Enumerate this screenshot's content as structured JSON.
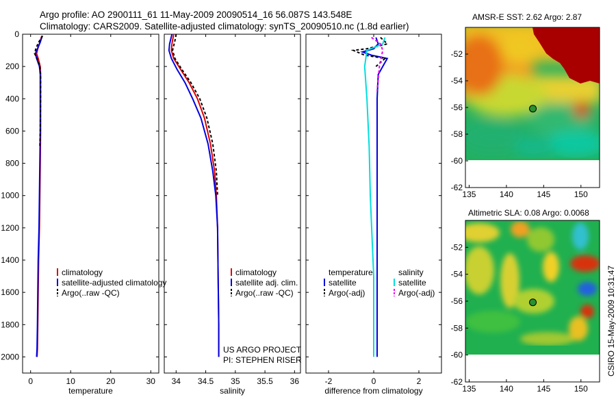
{
  "header": {
    "line1": "Argo profile: AO 2900111_61 11-May-2009 20090514_16 56.087S 143.548E",
    "line2": "Climatology: CARS2009. Satellite-adjusted climatology: synTS_20090510.nc (1.8d earlier)"
  },
  "chart_data": [
    {
      "type": "line",
      "id": "temperature",
      "xlabel": "temperature",
      "ylabel": "",
      "xlim": [
        -2,
        32
      ],
      "ylim": [
        2100,
        0
      ],
      "xticks": [
        0,
        10,
        20,
        30
      ],
      "yticks": [
        0,
        200,
        400,
        600,
        800,
        1000,
        1200,
        1400,
        1600,
        1800,
        2000
      ],
      "legend": [
        "climatology",
        "satellite-adjusted climatology",
        "Argo(..raw -QC)"
      ],
      "series": [
        {
          "name": "climatology",
          "color": "#dd0000",
          "x": [
            2.8,
            2.3,
            1.8,
            1.5,
            1.9,
            2.4,
            2.5,
            2.5,
            2.5,
            2.4,
            2.3,
            2.2,
            2.0,
            1.9,
            1.8,
            1.7,
            1.6
          ],
          "y": [
            10,
            50,
            90,
            120,
            150,
            200,
            250,
            400,
            600,
            800,
            1000,
            1200,
            1400,
            1600,
            1800,
            1950,
            2000
          ]
        },
        {
          "name": "satellite-adjusted climatology",
          "color": "#0000dd",
          "x": [
            2.9,
            2.4,
            1.7,
            1.2,
            1.5,
            2.2,
            2.4,
            2.4,
            2.4,
            2.3,
            2.2,
            2.1,
            1.9,
            1.8,
            1.7,
            1.6,
            1.5
          ],
          "y": [
            10,
            50,
            90,
            120,
            150,
            200,
            250,
            400,
            600,
            800,
            1000,
            1200,
            1400,
            1600,
            1800,
            1950,
            2000
          ]
        },
        {
          "name": "Argo(..raw -QC)",
          "color": "#000000",
          "dash": "4,3",
          "x": [
            3.0,
            2.0,
            1.3,
            1.0,
            1.6,
            2.3,
            2.5,
            2.5,
            2.4,
            2.3
          ],
          "y": [
            10,
            50,
            90,
            120,
            150,
            200,
            250,
            400,
            600,
            700
          ]
        }
      ]
    },
    {
      "type": "line",
      "id": "salinity",
      "xlabel": "salinity",
      "xlim": [
        33.8,
        36.1
      ],
      "ylim": [
        2100,
        0
      ],
      "xticks": [
        34,
        34.5,
        35,
        35.5,
        36
      ],
      "xticklabels": [
        "34",
        "34.5",
        "35",
        "35.5",
        "36"
      ],
      "legend": [
        "climatology",
        "satellite adj. clim.",
        "Argo(..raw -QC)"
      ],
      "series": [
        {
          "name": "climatology",
          "color": "#dd0000",
          "x": [
            33.96,
            33.93,
            33.92,
            33.96,
            34.08,
            34.22,
            34.36,
            34.48,
            34.58,
            34.65,
            34.68,
            34.7,
            34.71,
            34.72,
            34.72
          ],
          "y": [
            0,
            60,
            100,
            150,
            220,
            300,
            400,
            520,
            680,
            850,
            1000,
            1200,
            1500,
            1800,
            2000
          ]
        },
        {
          "name": "satellite adj. clim.",
          "color": "#0000dd",
          "x": [
            33.93,
            33.89,
            33.88,
            33.92,
            34.02,
            34.15,
            34.28,
            34.42,
            34.54,
            34.62,
            34.67,
            34.7,
            34.71,
            34.72,
            34.72
          ],
          "y": [
            0,
            60,
            100,
            150,
            220,
            300,
            400,
            520,
            680,
            850,
            1000,
            1200,
            1500,
            1800,
            2000
          ]
        },
        {
          "name": "Argo(..raw -QC)",
          "color": "#000000",
          "dash": "4,3",
          "x": [
            34.0,
            33.98,
            33.94,
            33.98,
            34.1,
            34.25,
            34.4,
            34.52,
            34.62,
            34.68,
            34.7
          ],
          "y": [
            0,
            40,
            100,
            150,
            220,
            300,
            400,
            520,
            680,
            850,
            1000
          ]
        }
      ],
      "annotations": [
        "US ARGO PROJECT",
        "PI: STEPHEN RISER"
      ]
    },
    {
      "type": "line",
      "id": "difference",
      "xlabel": "difference from climatology",
      "xlim": [
        -3.0,
        3.0
      ],
      "ylim": [
        2100,
        0
      ],
      "xticks": [
        -2,
        0,
        2
      ],
      "legend_columns": [
        {
          "heading": "temperature",
          "items": [
            "satellite",
            "Argo(-adj)"
          ]
        },
        {
          "heading": "salinity",
          "items": [
            "satellite",
            "Argo(-adj)"
          ]
        }
      ],
      "series": [
        {
          "name": "temperature satellite",
          "color": "#0000dd",
          "x": [
            0.1,
            0.2,
            0.0,
            -0.5,
            -0.1,
            0.6,
            0.4,
            0.2,
            0.15,
            0.15,
            0.15,
            0.15,
            0.15,
            0.15,
            0.15
          ],
          "y": [
            20,
            60,
            90,
            110,
            130,
            150,
            200,
            250,
            400,
            600,
            800,
            1000,
            1400,
            1800,
            2000
          ]
        },
        {
          "name": "temperature Argo(-adj)",
          "color": "#000000",
          "dash": "4,3",
          "x": [
            0.3,
            0.6,
            -0.3,
            -0.9,
            -0.4,
            0.5,
            0.1
          ],
          "y": [
            20,
            60,
            90,
            100,
            130,
            150,
            200
          ]
        },
        {
          "name": "salinity satellite",
          "color": "#00dddd",
          "x": [
            0.5,
            0.4,
            -0.3,
            -0.4,
            -0.3,
            -0.2,
            -0.15,
            0.0,
            0.0
          ],
          "y": [
            20,
            60,
            100,
            200,
            400,
            700,
            1000,
            1500,
            2000
          ]
        },
        {
          "name": "salinity Argo(-adj)",
          "color": "#ee00ee",
          "dash": "4,3",
          "x": [
            -0.1,
            0.3,
            0.4,
            0.25,
            0.15
          ],
          "y": [
            20,
            60,
            100,
            200,
            350
          ]
        }
      ]
    },
    {
      "type": "heatmap",
      "id": "sst-map",
      "title": "AMSR-E SST: 2.62 Argo: 2.87",
      "xlim": [
        134.5,
        152.5
      ],
      "ylim": [
        -62,
        -50
      ],
      "xticks": [
        135,
        140,
        145,
        150
      ],
      "yticks": [
        -52,
        -54,
        -56,
        -58,
        -60,
        -62
      ],
      "data_extent_y": [
        -60,
        -50
      ],
      "marker": {
        "lon": 143.548,
        "lat": -56.087
      }
    },
    {
      "type": "heatmap",
      "id": "sla-map",
      "title": "Altimetric SLA: 0.08 Argo: 0.0068",
      "xlim": [
        134.5,
        152.5
      ],
      "ylim": [
        -62,
        -50
      ],
      "xticks": [
        135,
        140,
        145,
        150
      ],
      "yticks": [
        -52,
        -54,
        -56,
        -58,
        -60,
        -62
      ],
      "data_extent_y": [
        -60,
        -50
      ],
      "marker": {
        "lon": 143.548,
        "lat": -56.087
      }
    }
  ],
  "footer_vertical": "CSIRO 15-May-2009 10:31:47"
}
